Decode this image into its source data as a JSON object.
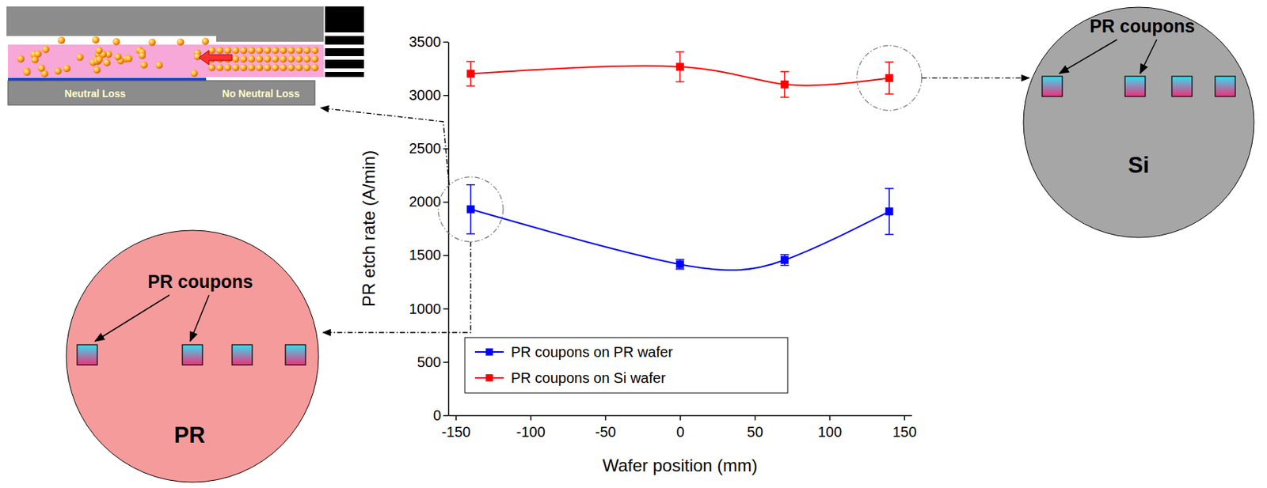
{
  "chart_data": {
    "type": "line",
    "x_label": "Wafer position (mm)",
    "y_label": "PR etch rate (A/min)",
    "x": [
      -140,
      0,
      70,
      140
    ],
    "xlim": [
      -155,
      155
    ],
    "xticks": [
      -150,
      -100,
      -50,
      0,
      50,
      100,
      150
    ],
    "ylim": [
      0,
      3500
    ],
    "yticks": [
      0,
      500,
      1000,
      1500,
      2000,
      2500,
      3000,
      3500
    ],
    "legend": "lower left",
    "series": [
      {
        "name": "PR coupons on PR wafer",
        "color": "#0000ff",
        "marker": "square",
        "line_style": "solid",
        "values": [
          1930,
          1415,
          1455,
          1910
        ],
        "errors": [
          230,
          45,
          50,
          215
        ]
      },
      {
        "name": "PR coupons on Si wafer",
        "color": "#ff0000",
        "marker": "square",
        "line_style": "solid",
        "values": [
          3200,
          3265,
          3100,
          3160
        ],
        "errors": [
          115,
          140,
          120,
          150
        ]
      }
    ]
  },
  "diagram": {
    "schematic": {
      "labels": [
        "Neutral Loss",
        "No Neutral Loss"
      ]
    },
    "pr_wafer": {
      "coupon_label": "PR coupons",
      "label": "PR"
    },
    "si_wafer": {
      "coupon_label": "PR coupons",
      "label": "Si"
    }
  }
}
